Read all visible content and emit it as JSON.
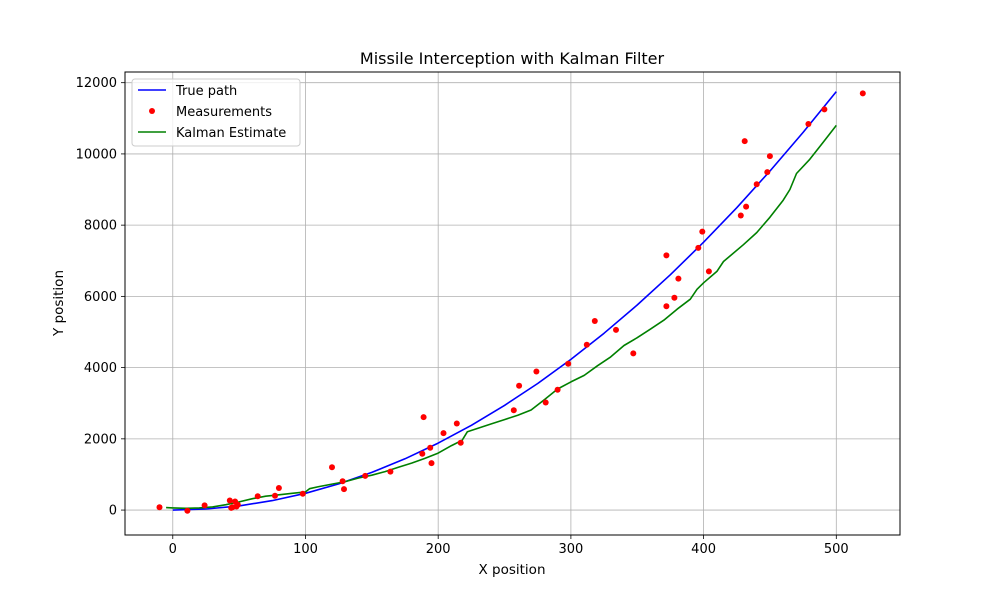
{
  "chart_data": {
    "type": "line",
    "title": "Missile Interception with Kalman Filter",
    "xlabel": "X position",
    "ylabel": "Y position",
    "xlim": [
      -36,
      548
    ],
    "ylim": [
      -700,
      12300
    ],
    "xticks": [
      0,
      100,
      200,
      300,
      400,
      500
    ],
    "yticks": [
      0,
      2000,
      4000,
      6000,
      8000,
      10000,
      12000
    ],
    "xtick_labels": [
      "0",
      "100",
      "200",
      "300",
      "400",
      "500"
    ],
    "ytick_labels": [
      "0",
      "2000",
      "4000",
      "6000",
      "8000",
      "10000",
      "12000"
    ],
    "grid": true,
    "legend_position": "top-left",
    "colors": {
      "true_path": "#0000ff",
      "measurements": "#ff0000",
      "kalman": "#008000"
    },
    "series": [
      {
        "name": "True path",
        "kind": "line",
        "x": [
          0,
          25,
          50,
          75,
          100,
          125,
          150,
          175,
          200,
          225,
          250,
          275,
          300,
          325,
          350,
          375,
          400,
          425,
          450,
          475,
          500
        ],
        "y": [
          0,
          29,
          118,
          265,
          470,
          735,
          1058,
          1440,
          1880,
          2380,
          2938,
          3555,
          4230,
          4965,
          5758,
          6610,
          7520,
          8490,
          9518,
          10605,
          11750
        ]
      },
      {
        "name": "Measurements",
        "kind": "scatter",
        "x": [
          -10,
          11,
          24,
          43,
          44,
          45,
          47,
          48,
          49,
          64,
          77,
          80,
          98,
          120,
          128,
          129,
          145,
          164,
          188,
          189,
          194,
          195,
          204,
          214,
          217,
          257,
          261,
          274,
          281,
          290,
          298,
          312,
          318,
          334,
          347,
          372,
          372,
          378,
          381,
          396,
          399,
          404,
          428,
          431,
          432,
          440,
          448,
          450,
          479,
          491,
          520
        ],
        "y": [
          80,
          -20,
          130,
          270,
          60,
          80,
          240,
          100,
          150,
          390,
          400,
          620,
          460,
          1200,
          810,
          590,
          960,
          1080,
          1580,
          2610,
          1750,
          1320,
          2160,
          2430,
          1890,
          2800,
          3490,
          3890,
          3020,
          3380,
          4110,
          4640,
          5310,
          5060,
          4400,
          5720,
          7150,
          5960,
          6500,
          7360,
          7820,
          6700,
          8270,
          10360,
          8520,
          9150,
          9490,
          9940,
          10840,
          11250,
          11700
        ]
      },
      {
        "name": "Kalman Estimate",
        "kind": "line",
        "x": [
          -5,
          0,
          10,
          20,
          30,
          40,
          50,
          60,
          70,
          80,
          90,
          100,
          103,
          110,
          120,
          130,
          140,
          150,
          160,
          170,
          180,
          190,
          200,
          210,
          218,
          222,
          230,
          240,
          250,
          260,
          270,
          280,
          290,
          300,
          310,
          320,
          330,
          340,
          350,
          360,
          370,
          380,
          390,
          395,
          400,
          410,
          415,
          430,
          440,
          450,
          460,
          465,
          470,
          480,
          490,
          500
        ],
        "y": [
          70,
          60,
          50,
          60,
          90,
          150,
          230,
          320,
          390,
          430,
          470,
          510,
          600,
          660,
          730,
          800,
          900,
          980,
          1080,
          1200,
          1320,
          1450,
          1600,
          1810,
          1960,
          2200,
          2300,
          2420,
          2540,
          2660,
          2810,
          3100,
          3400,
          3600,
          3780,
          4050,
          4300,
          4620,
          4840,
          5080,
          5330,
          5640,
          5920,
          6200,
          6380,
          6700,
          6980,
          7450,
          7790,
          8220,
          8700,
          9000,
          9450,
          9850,
          10320,
          10800
        ]
      }
    ]
  }
}
